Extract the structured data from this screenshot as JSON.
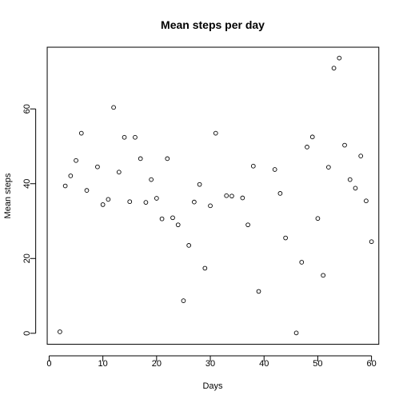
{
  "chart_data": {
    "type": "scatter",
    "title": "Mean steps per day",
    "xlabel": "Days",
    "ylabel": "Mean steps",
    "xlim": [
      -0.36,
      61.36
    ],
    "ylim": [
      -2.94,
      76.5
    ],
    "xticks": [
      0,
      10,
      20,
      30,
      40,
      50,
      60
    ],
    "yticks": [
      0,
      20,
      40,
      60
    ],
    "grid": false,
    "series": [
      {
        "x": [
          2,
          3,
          4,
          5,
          6,
          7,
          9,
          10,
          11,
          12,
          13,
          14,
          15,
          16,
          17,
          18,
          19,
          20,
          21,
          22,
          23,
          24,
          25,
          26,
          27,
          28,
          29,
          30,
          31,
          33,
          34,
          36,
          37,
          38,
          39,
          42,
          43,
          44,
          46,
          47,
          48,
          49,
          50,
          51,
          52,
          53,
          54,
          55,
          56,
          57,
          58,
          59,
          60
        ],
        "y": [
          0.4,
          39.4,
          42.1,
          46.2,
          53.5,
          38.2,
          44.5,
          34.4,
          35.8,
          60.4,
          43.1,
          52.4,
          35.2,
          52.4,
          46.7,
          35.0,
          41.1,
          36.1,
          30.6,
          46.7,
          30.9,
          29.0,
          8.7,
          23.5,
          35.1,
          39.8,
          17.4,
          34.1,
          53.5,
          36.8,
          36.7,
          36.2,
          29.0,
          44.7,
          11.2,
          43.8,
          37.4,
          25.5,
          0.1,
          19.0,
          49.8,
          52.5,
          30.7,
          15.5,
          44.4,
          70.9,
          73.6,
          50.3,
          41.1,
          38.8,
          47.4,
          35.4,
          24.5
        ]
      }
    ]
  }
}
